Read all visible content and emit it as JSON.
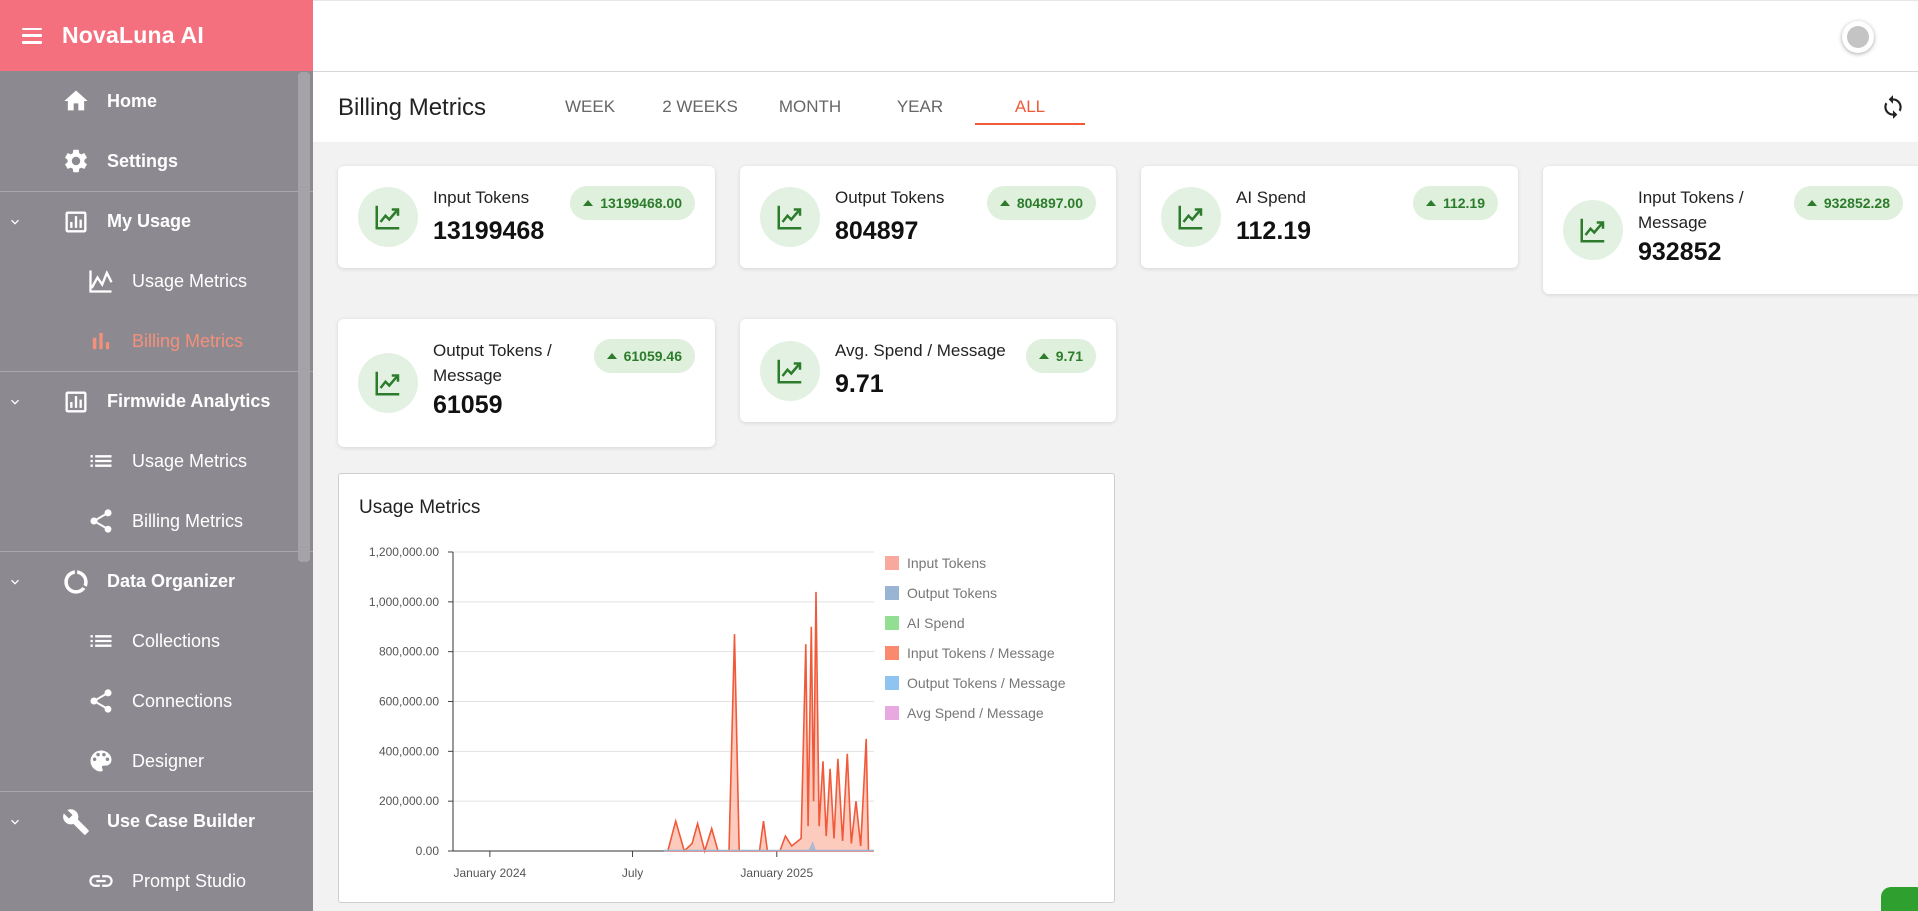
{
  "app": {
    "title": "NovaLuna AI"
  },
  "sidebar": {
    "items": [
      {
        "label": "Home",
        "icon": "home-icon",
        "level": "top"
      },
      {
        "label": "Settings",
        "icon": "gear-icon",
        "level": "top"
      },
      {
        "label": "My Usage",
        "icon": "bar-chart-box-icon",
        "level": "top",
        "expandable": true
      },
      {
        "label": "Usage Metrics",
        "icon": "line-chart-icon",
        "level": "sub"
      },
      {
        "label": "Billing Metrics",
        "icon": "bar-chart-icon",
        "level": "sub",
        "active": true
      },
      {
        "label": "Firmwide Analytics",
        "icon": "bar-chart-box-icon",
        "level": "top",
        "expandable": true
      },
      {
        "label": "Usage Metrics",
        "icon": "list-icon",
        "level": "sub"
      },
      {
        "label": "Billing Metrics",
        "icon": "share-icon",
        "level": "sub"
      },
      {
        "label": "Data Organizer",
        "icon": "donut-icon",
        "level": "top",
        "expandable": true
      },
      {
        "label": "Collections",
        "icon": "list-icon",
        "level": "sub"
      },
      {
        "label": "Connections",
        "icon": "share-icon",
        "level": "sub"
      },
      {
        "label": "Designer",
        "icon": "palette-icon",
        "level": "sub"
      },
      {
        "label": "Use Case Builder",
        "icon": "wrench-icon",
        "level": "top",
        "expandable": true
      },
      {
        "label": "Prompt Studio",
        "icon": "link-icon",
        "level": "sub"
      }
    ]
  },
  "page": {
    "title": "Billing Metrics",
    "tabs": [
      {
        "label": "WEEK"
      },
      {
        "label": "2 WEEKS"
      },
      {
        "label": "MONTH"
      },
      {
        "label": "YEAR"
      },
      {
        "label": "ALL",
        "active": true
      }
    ]
  },
  "metrics": [
    {
      "label": "Input Tokens",
      "value": "13199468",
      "badge": "13199468.00"
    },
    {
      "label": "Output Tokens",
      "value": "804897",
      "badge": "804897.00"
    },
    {
      "label": "AI Spend",
      "value": "112.19",
      "badge": "112.19"
    },
    {
      "label": "Input Tokens /",
      "label2": "Message",
      "value": "932852",
      "badge": "932852.28"
    },
    {
      "label": "Output Tokens /",
      "label2": "Message",
      "value": "61059",
      "badge": "61059.46"
    },
    {
      "label": "Avg. Spend / Message",
      "value": "9.71",
      "badge": "9.71"
    }
  ],
  "colors": {
    "accent": "#f05a3a",
    "brand": "#f5707f",
    "sidebar": "#8c8a90",
    "positive": "#2c7c2c"
  },
  "chart_data": {
    "type": "area",
    "title": "Usage Metrics",
    "xlabel": "",
    "ylabel": "",
    "ylim": [
      0,
      1200000
    ],
    "yticks": [
      "1,200,000.00",
      "1,000,000.00",
      "800,000.00",
      "600,000.00",
      "400,000.00",
      "200,000.00",
      "0.00"
    ],
    "xticks": [
      "January 2024",
      "July",
      "January 2025"
    ],
    "legend_position": "right",
    "series": [
      {
        "name": "Input Tokens",
        "color": "#f8a89c",
        "values": []
      },
      {
        "name": "Output Tokens",
        "color": "#9ab4d4",
        "values": []
      },
      {
        "name": "AI Spend",
        "color": "#92de92",
        "values": []
      },
      {
        "name": "Input Tokens / Message",
        "color": "#fa8a6e",
        "points": [
          [
            "2024-08-15",
            0
          ],
          [
            "2024-08-25",
            120000
          ],
          [
            "2024-09-05",
            0
          ],
          [
            "2024-09-15",
            30000
          ],
          [
            "2024-09-22",
            110000
          ],
          [
            "2024-10-01",
            0
          ],
          [
            "2024-10-10",
            90000
          ],
          [
            "2024-10-18",
            0
          ],
          [
            "2024-11-01",
            0
          ],
          [
            "2024-11-08",
            870000
          ],
          [
            "2024-11-14",
            0
          ],
          [
            "2024-12-10",
            0
          ],
          [
            "2024-12-15",
            120000
          ],
          [
            "2024-12-20",
            0
          ],
          [
            "2025-01-05",
            0
          ],
          [
            "2025-01-12",
            60000
          ],
          [
            "2025-01-20",
            20000
          ],
          [
            "2025-02-01",
            50000
          ],
          [
            "2025-02-07",
            830000
          ],
          [
            "2025-02-10",
            100000
          ],
          [
            "2025-02-14",
            900000
          ],
          [
            "2025-02-17",
            200000
          ],
          [
            "2025-02-20",
            1040000
          ],
          [
            "2025-02-24",
            100000
          ],
          [
            "2025-03-01",
            360000
          ],
          [
            "2025-03-05",
            60000
          ],
          [
            "2025-03-10",
            330000
          ],
          [
            "2025-03-15",
            50000
          ],
          [
            "2025-03-20",
            370000
          ],
          [
            "2025-03-26",
            40000
          ],
          [
            "2025-04-01",
            390000
          ],
          [
            "2025-04-06",
            30000
          ],
          [
            "2025-04-12",
            200000
          ],
          [
            "2025-04-18",
            20000
          ],
          [
            "2025-04-25",
            450000
          ],
          [
            "2025-04-28",
            0
          ],
          [
            "2025-05-05",
            0
          ]
        ]
      },
      {
        "name": "Output Tokens / Message",
        "color": "#90c4f0",
        "values": []
      },
      {
        "name": "Avg Spend / Message",
        "color": "#e8a8e0",
        "values": []
      }
    ]
  }
}
